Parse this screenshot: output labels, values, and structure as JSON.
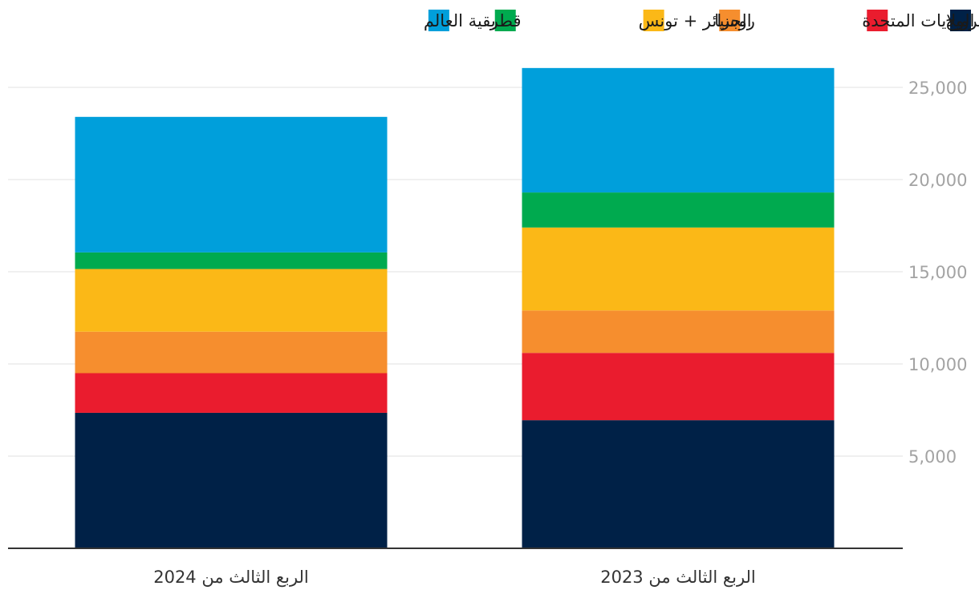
{
  "chart_data": {
    "type": "bar",
    "stacked": true,
    "direction": "rtl",
    "categories": [
      "الربع الثالث من 2023",
      "الربع الثالث من 2024"
    ],
    "series": [
      {
        "name": "النرويج",
        "color": "#002147",
        "values": [
          6950,
          7350
        ]
      },
      {
        "name": "الولايات المتحدة",
        "color": "#ea1c2e",
        "values": [
          3650,
          2150
        ]
      },
      {
        "name": "روسيا",
        "color": "#f68e2e",
        "values": [
          2300,
          2250
        ]
      },
      {
        "name": "الجزائر + تونس",
        "color": "#fbb817",
        "values": [
          4500,
          3400
        ]
      },
      {
        "name": "قطر",
        "color": "#00aa4f",
        "values": [
          1900,
          900
        ]
      },
      {
        "name": "بقية العالم",
        "color": "#009fdb",
        "values": [
          6750,
          7350
        ]
      }
    ],
    "y_ticks": [
      "5,000",
      "10,000",
      "15,000",
      "20,000",
      "25,000"
    ],
    "y_tick_values": [
      5000,
      10000,
      15000,
      20000,
      25000
    ],
    "ylim": [
      0,
      25000
    ],
    "grid": true,
    "legend": "top-right",
    "axis_side": "right",
    "title": "",
    "xlabel": "",
    "ylabel": ""
  }
}
